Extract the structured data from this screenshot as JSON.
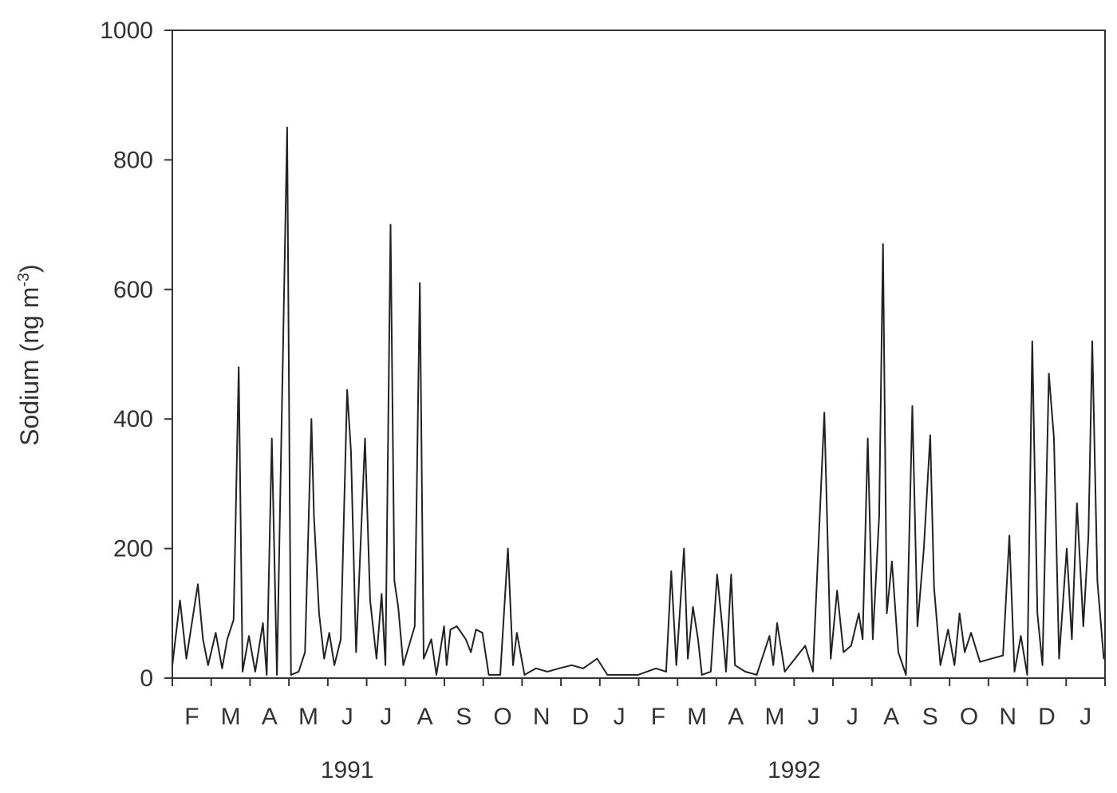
{
  "chart_data": {
    "type": "line",
    "title": "",
    "ylabel": "Sodium (ng m",
    "ylabel_superscript": "-3",
    "ylabel_close": ")",
    "xlabel": "",
    "ylim": [
      0,
      1000
    ],
    "xlim": [
      "1991-02-01",
      "1993-02-01"
    ],
    "yticks": [
      "0",
      "200",
      "400",
      "600",
      "800",
      "1000"
    ],
    "month_labels": [
      "F",
      "M",
      "A",
      "M",
      "J",
      "J",
      "A",
      "S",
      "O",
      "N",
      "D",
      "J",
      "F",
      "M",
      "A",
      "M",
      "J",
      "J",
      "A",
      "S",
      "O",
      "N",
      "D",
      "J"
    ],
    "year_labels": [
      {
        "label": "1991",
        "month_index": 4.5
      },
      {
        "label": "1992",
        "month_index": 16
      }
    ],
    "grid": false,
    "line_color": "#222222",
    "series": [
      {
        "x": [
          "1991-02-01",
          "1991-02-07",
          "1991-02-12",
          "1991-02-21",
          "1991-02-25",
          "1991-03-01",
          "1991-03-07",
          "1991-03-12",
          "1991-03-16",
          "1991-03-21",
          "1991-03-25",
          "1991-03-28",
          "1991-04-02",
          "1991-04-07",
          "1991-04-13",
          "1991-04-16",
          "1991-04-20",
          "1991-04-24",
          "1991-05-02",
          "1991-05-05",
          "1991-05-11",
          "1991-05-16",
          "1991-05-21",
          "1991-05-23",
          "1991-05-27",
          "1991-05-31",
          "1991-06-04",
          "1991-06-08",
          "1991-06-13",
          "1991-06-18",
          "1991-06-21",
          "1991-06-25",
          "1991-07-02",
          "1991-07-06",
          "1991-07-11",
          "1991-07-15",
          "1991-07-18",
          "1991-07-22",
          "1991-07-25",
          "1991-07-28",
          "1991-08-01",
          "1991-08-04",
          "1991-08-10",
          "1991-08-14",
          "1991-08-17",
          "1991-08-23",
          "1991-08-27",
          "1991-09-02",
          "1991-09-04",
          "1991-09-07",
          "1991-09-12",
          "1991-09-19",
          "1991-09-23",
          "1991-09-27",
          "1991-10-02",
          "1991-10-07",
          "1991-10-16",
          "1991-10-22",
          "1991-10-26",
          "1991-10-29",
          "1991-11-04",
          "1991-11-13",
          "1991-11-22",
          "1991-12-01",
          "1991-12-11",
          "1991-12-20",
          "1991-12-31",
          "1992-01-08",
          "1992-02-01",
          "1992-02-15",
          "1992-02-23",
          "1992-02-27",
          "1992-03-02",
          "1992-03-08",
          "1992-03-11",
          "1992-03-15",
          "1992-03-19",
          "1992-03-22",
          "1992-03-29",
          "1992-04-03",
          "1992-04-07",
          "1992-04-10",
          "1992-04-14",
          "1992-04-17",
          "1992-04-25",
          "1992-05-04",
          "1992-05-14",
          "1992-05-17",
          "1992-05-20",
          "1992-05-26",
          "1992-06-03",
          "1992-06-11",
          "1992-06-17",
          "1992-06-26",
          "1992-07-01",
          "1992-07-06",
          "1992-07-11",
          "1992-07-17",
          "1992-07-23",
          "1992-07-26",
          "1992-07-30",
          "1992-08-03",
          "1992-08-08",
          "1992-08-11",
          "1992-08-14",
          "1992-08-18",
          "1992-08-23",
          "1992-08-29",
          "1992-09-03",
          "1992-09-07",
          "1992-09-12",
          "1992-09-17",
          "1992-09-20",
          "1992-09-25",
          "1992-10-01",
          "1992-10-06",
          "1992-10-10",
          "1992-10-14",
          "1992-10-19",
          "1992-10-26",
          "1992-11-04",
          "1992-11-13",
          "1992-11-18",
          "1992-11-22",
          "1992-11-27",
          "1992-12-02",
          "1992-12-06",
          "1992-12-10",
          "1992-12-14",
          "1992-12-19",
          "1992-12-23",
          "1992-12-27",
          "1993-01-02",
          "1993-01-06",
          "1993-01-10",
          "1993-01-15",
          "1993-01-19",
          "1993-01-22",
          "1993-01-26",
          "1993-01-31"
        ],
        "y": [
          20,
          120,
          30,
          145,
          60,
          20,
          70,
          15,
          60,
          90,
          480,
          10,
          65,
          10,
          85,
          5,
          370,
          5,
          850,
          5,
          10,
          40,
          400,
          250,
          100,
          30,
          70,
          20,
          60,
          445,
          350,
          40,
          370,
          120,
          30,
          130,
          20,
          700,
          150,
          110,
          20,
          40,
          80,
          610,
          30,
          60,
          5,
          80,
          20,
          75,
          80,
          60,
          40,
          75,
          70,
          5,
          5,
          200,
          20,
          70,
          5,
          15,
          10,
          15,
          20,
          15,
          30,
          5,
          5,
          15,
          10,
          165,
          20,
          200,
          30,
          110,
          60,
          5,
          10,
          160,
          80,
          10,
          160,
          20,
          10,
          5,
          65,
          20,
          85,
          10,
          30,
          50,
          10,
          410,
          30,
          135,
          40,
          50,
          100,
          60,
          370,
          60,
          250,
          670,
          100,
          180,
          40,
          5,
          420,
          80,
          200,
          375,
          140,
          20,
          75,
          20,
          100,
          40,
          70,
          25,
          30,
          35,
          220,
          10,
          65,
          5,
          520,
          100,
          20,
          470,
          370,
          30,
          200,
          60,
          270,
          80,
          220,
          520,
          150,
          30
        ]
      }
    ]
  }
}
